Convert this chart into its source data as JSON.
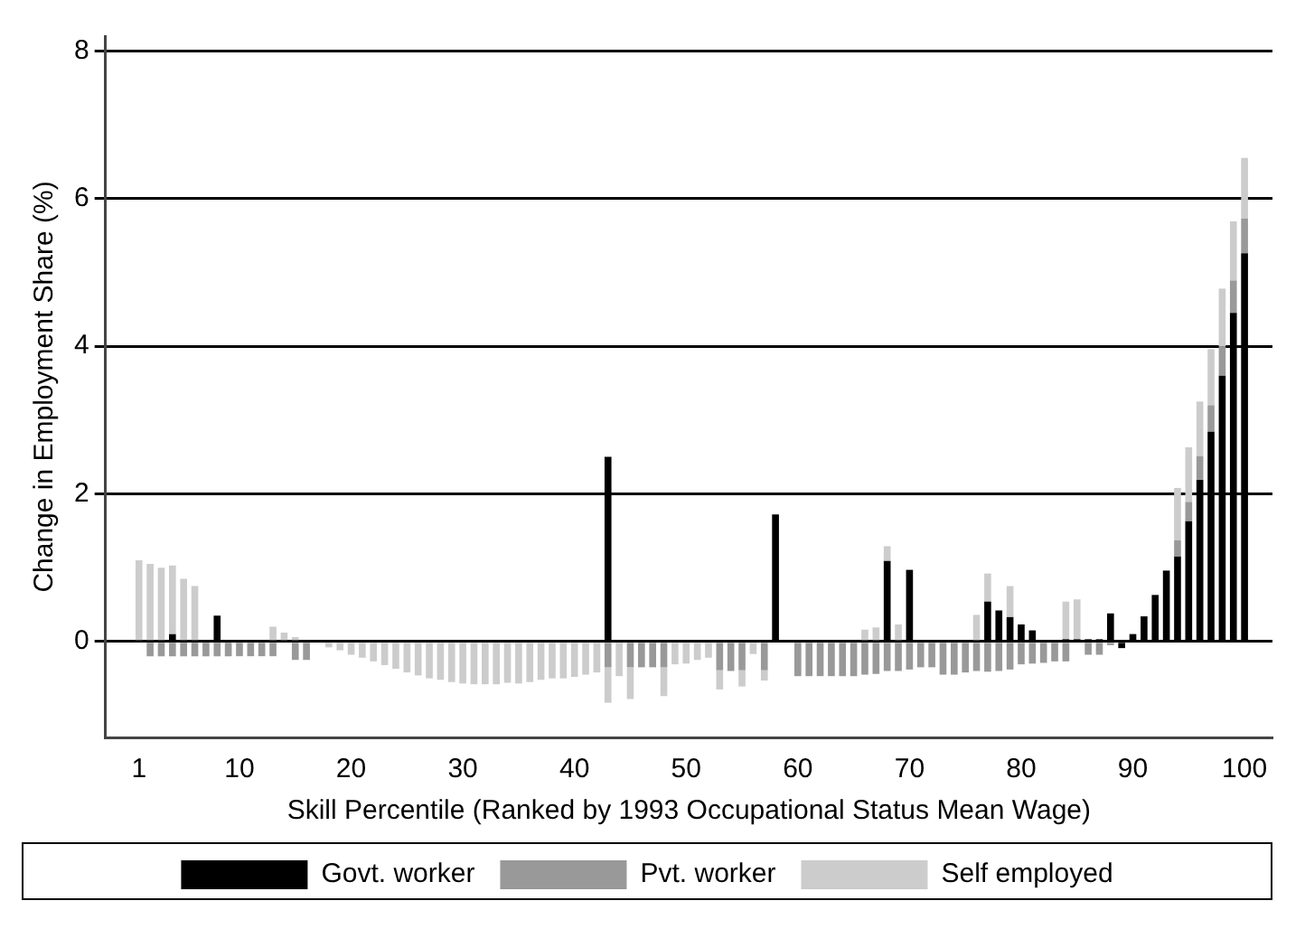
{
  "chart_data": {
    "type": "bar",
    "stacked": true,
    "xlabel": "Skill Percentile (Ranked by 1993 Occupational Status Mean Wage)",
    "ylabel": "Change in Employment Share (%)",
    "x": [
      1,
      2,
      3,
      4,
      5,
      6,
      7,
      8,
      9,
      10,
      11,
      12,
      13,
      14,
      15,
      16,
      17,
      18,
      19,
      20,
      21,
      22,
      23,
      24,
      25,
      26,
      27,
      28,
      29,
      30,
      31,
      32,
      33,
      34,
      35,
      36,
      37,
      38,
      39,
      40,
      41,
      42,
      43,
      44,
      45,
      46,
      47,
      48,
      49,
      50,
      51,
      52,
      53,
      54,
      55,
      56,
      57,
      58,
      59,
      60,
      61,
      62,
      63,
      64,
      65,
      66,
      67,
      68,
      69,
      70,
      71,
      72,
      73,
      74,
      75,
      76,
      77,
      78,
      79,
      80,
      81,
      82,
      83,
      84,
      85,
      86,
      87,
      88,
      89,
      90,
      91,
      92,
      93,
      94,
      95,
      96,
      97,
      98,
      99,
      100
    ],
    "series": [
      {
        "name": "Govt. worker",
        "color": "#000000",
        "values": [
          null,
          null,
          null,
          0.1,
          null,
          null,
          null,
          0.35,
          null,
          null,
          null,
          null,
          null,
          null,
          null,
          null,
          null,
          null,
          null,
          null,
          null,
          null,
          null,
          null,
          null,
          null,
          null,
          null,
          null,
          null,
          null,
          null,
          null,
          null,
          null,
          null,
          null,
          null,
          null,
          null,
          null,
          null,
          2.5,
          null,
          null,
          null,
          null,
          null,
          null,
          null,
          null,
          null,
          null,
          null,
          null,
          null,
          null,
          1.72,
          null,
          null,
          null,
          null,
          null,
          null,
          null,
          null,
          null,
          1.09,
          null,
          0.97,
          null,
          null,
          null,
          null,
          null,
          null,
          0.54,
          0.42,
          0.33,
          0.23,
          0.15,
          null,
          null,
          0.03,
          0.03,
          0.03,
          0.03,
          0.38,
          -0.09,
          0.1,
          0.34,
          0.63,
          0.96,
          1.15,
          1.63,
          2.19,
          2.84,
          3.6,
          4.45,
          5.26
        ]
      },
      {
        "name": "Pvt. worker",
        "color": "#999999",
        "values": [
          null,
          -0.2,
          -0.2,
          -0.2,
          -0.2,
          -0.2,
          -0.2,
          -0.2,
          -0.2,
          -0.2,
          -0.2,
          -0.2,
          -0.2,
          null,
          -0.25,
          -0.25,
          null,
          null,
          null,
          null,
          null,
          null,
          null,
          null,
          null,
          null,
          null,
          null,
          null,
          null,
          null,
          null,
          null,
          null,
          null,
          null,
          null,
          null,
          null,
          null,
          null,
          null,
          -0.35,
          null,
          -0.35,
          -0.35,
          -0.35,
          -0.35,
          null,
          null,
          null,
          null,
          -0.39,
          -0.4,
          -0.39,
          null,
          -0.39,
          null,
          null,
          -0.47,
          -0.47,
          -0.47,
          -0.47,
          -0.47,
          -0.47,
          -0.45,
          -0.44,
          -0.4,
          -0.4,
          -0.38,
          -0.35,
          -0.35,
          -0.45,
          -0.45,
          -0.42,
          -0.4,
          -0.41,
          -0.4,
          -0.38,
          -0.31,
          -0.3,
          -0.29,
          -0.27,
          -0.27,
          null,
          -0.18,
          -0.18,
          -0.05,
          null,
          null,
          null,
          null,
          null,
          0.22,
          0.26,
          0.32,
          0.36,
          0.4,
          0.44,
          0.47
        ]
      },
      {
        "name": "Self employed",
        "color": "#cccccc",
        "values": [
          1.1,
          1.05,
          1.0,
          0.93,
          0.85,
          0.75,
          null,
          null,
          null,
          null,
          null,
          null,
          0.2,
          0.12,
          0.06,
          null,
          null,
          -0.08,
          -0.12,
          -0.18,
          -0.22,
          -0.27,
          -0.32,
          -0.37,
          -0.42,
          -0.46,
          -0.5,
          -0.52,
          -0.55,
          -0.57,
          -0.58,
          -0.58,
          -0.58,
          -0.56,
          -0.57,
          -0.55,
          -0.52,
          -0.5,
          -0.5,
          -0.48,
          -0.45,
          -0.42,
          -0.48,
          -0.47,
          -0.43,
          null,
          null,
          -0.39,
          -0.31,
          -0.3,
          -0.25,
          -0.22,
          -0.26,
          null,
          -0.22,
          -0.17,
          -0.14,
          null,
          null,
          null,
          null,
          null,
          null,
          null,
          null,
          0.16,
          0.19,
          0.2,
          0.23,
          null,
          null,
          null,
          null,
          null,
          null,
          0.36,
          0.38,
          null,
          0.42,
          null,
          null,
          null,
          null,
          0.51,
          0.54,
          null,
          null,
          null,
          null,
          null,
          null,
          null,
          null,
          0.71,
          0.74,
          0.74,
          0.76,
          0.78,
          0.8,
          0.82
        ]
      }
    ],
    "xlim": [
      -2,
      102.5
    ],
    "xticks": [
      1,
      10,
      20,
      30,
      40,
      50,
      60,
      70,
      80,
      90,
      100
    ],
    "ylim": [
      -1.3,
      8.2
    ],
    "yticks": [
      0,
      2,
      4,
      6,
      8
    ],
    "grid": "y",
    "legend": "bottom"
  }
}
